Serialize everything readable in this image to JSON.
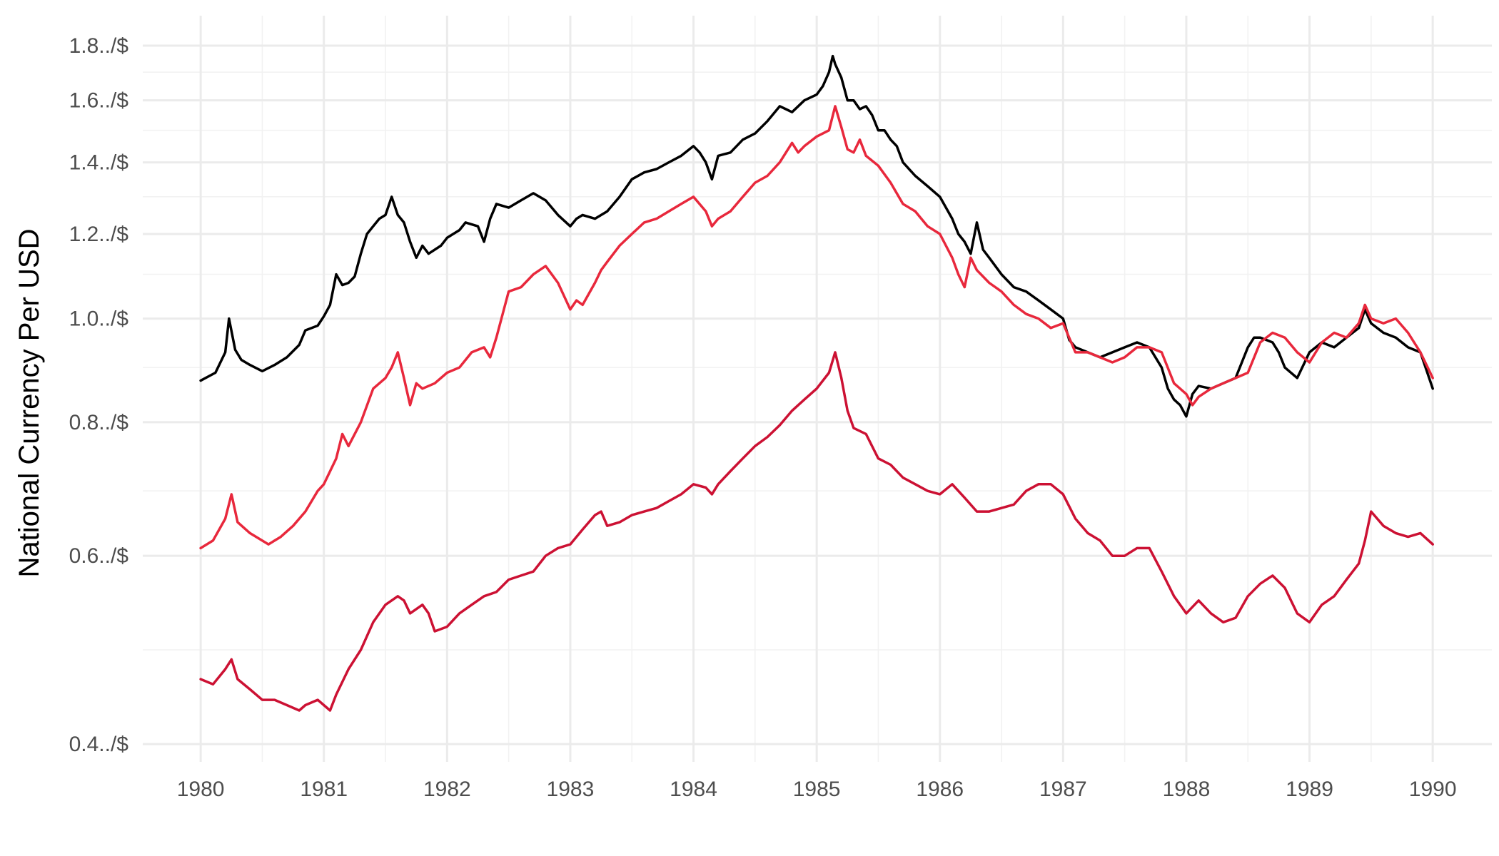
{
  "chart_data": {
    "type": "line",
    "title": "",
    "xlabel": "",
    "ylabel": "National Currency Per USD",
    "y_scale": "log",
    "xlim": [
      1979.53,
      1990.48
    ],
    "ylim": [
      0.385,
      1.92
    ],
    "grid": true,
    "legend": "none",
    "x_ticks": [
      1980,
      1981,
      1982,
      1983,
      1984,
      1985,
      1986,
      1987,
      1988,
      1989,
      1990
    ],
    "x_tick_labels": [
      "1980",
      "1981",
      "1982",
      "1983",
      "1984",
      "1985",
      "1986",
      "1987",
      "1988",
      "1989",
      "1990"
    ],
    "x_minor_ticks": [
      1980.5,
      1981.5,
      1982.5,
      1983.5,
      1984.5,
      1985.5,
      1986.5,
      1987.5,
      1988.5,
      1989.5
    ],
    "y_ticks": [
      0.4,
      0.6,
      0.8,
      1.0,
      1.2,
      1.4,
      1.6,
      1.8
    ],
    "y_tick_labels": [
      "0.4../$",
      "0.6../$",
      "0.8../$",
      "1.0../$",
      "1.2../$",
      "1.4../$",
      "1.6../$",
      "1.8../$"
    ],
    "y_minor_ticks": [
      0.49,
      0.69,
      0.9,
      1.1,
      1.3,
      1.5,
      1.7
    ],
    "series": [
      {
        "color": "#000000",
        "x": [
          1980.0,
          1980.12,
          1980.2,
          1980.23,
          1980.28,
          1980.33,
          1980.4,
          1980.5,
          1980.6,
          1980.7,
          1980.8,
          1980.85,
          1980.95,
          1981.0,
          1981.05,
          1981.1,
          1981.15,
          1981.2,
          1981.25,
          1981.3,
          1981.35,
          1981.4,
          1981.45,
          1981.5,
          1981.55,
          1981.6,
          1981.65,
          1981.7,
          1981.75,
          1981.8,
          1981.85,
          1981.95,
          1982.0,
          1982.1,
          1982.15,
          1982.25,
          1982.3,
          1982.35,
          1982.4,
          1982.5,
          1982.6,
          1982.7,
          1982.8,
          1982.9,
          1983.0,
          1983.05,
          1983.1,
          1983.2,
          1983.3,
          1983.4,
          1983.5,
          1983.6,
          1983.7,
          1983.8,
          1983.9,
          1984.0,
          1984.05,
          1984.1,
          1984.15,
          1984.2,
          1984.3,
          1984.4,
          1984.5,
          1984.6,
          1984.7,
          1984.75,
          1984.8,
          1984.9,
          1985.0,
          1985.05,
          1985.1,
          1985.13,
          1985.15,
          1985.2,
          1985.25,
          1985.3,
          1985.35,
          1985.4,
          1985.45,
          1985.5,
          1985.55,
          1985.6,
          1985.65,
          1985.7,
          1985.8,
          1985.9,
          1986.0,
          1986.1,
          1986.15,
          1986.2,
          1986.25,
          1986.3,
          1986.35,
          1986.4,
          1986.5,
          1986.6,
          1986.7,
          1986.8,
          1986.9,
          1987.0,
          1987.05,
          1987.1,
          1987.2,
          1987.3,
          1987.4,
          1987.5,
          1987.6,
          1987.7,
          1987.8,
          1987.85,
          1987.9,
          1987.95,
          1988.0,
          1988.05,
          1988.1,
          1988.2,
          1988.3,
          1988.4,
          1988.5,
          1988.55,
          1988.6,
          1988.7,
          1988.75,
          1988.8,
          1988.9,
          1989.0,
          1989.1,
          1989.2,
          1989.3,
          1989.4,
          1989.45,
          1989.5,
          1989.6,
          1989.7,
          1989.8,
          1989.9,
          1990.0
        ],
        "y": [
          0.875,
          0.89,
          0.93,
          1.0,
          0.935,
          0.915,
          0.905,
          0.893,
          0.905,
          0.92,
          0.945,
          0.975,
          0.985,
          1.005,
          1.03,
          1.1,
          1.075,
          1.08,
          1.095,
          1.15,
          1.2,
          1.22,
          1.24,
          1.25,
          1.3,
          1.25,
          1.23,
          1.18,
          1.14,
          1.17,
          1.15,
          1.17,
          1.19,
          1.21,
          1.23,
          1.22,
          1.18,
          1.24,
          1.28,
          1.27,
          1.29,
          1.31,
          1.29,
          1.25,
          1.22,
          1.24,
          1.25,
          1.24,
          1.26,
          1.3,
          1.35,
          1.37,
          1.38,
          1.4,
          1.42,
          1.45,
          1.43,
          1.4,
          1.35,
          1.42,
          1.43,
          1.47,
          1.49,
          1.53,
          1.58,
          1.57,
          1.56,
          1.6,
          1.62,
          1.65,
          1.7,
          1.76,
          1.73,
          1.68,
          1.6,
          1.6,
          1.57,
          1.58,
          1.55,
          1.5,
          1.5,
          1.47,
          1.45,
          1.4,
          1.36,
          1.33,
          1.3,
          1.24,
          1.2,
          1.18,
          1.15,
          1.23,
          1.16,
          1.14,
          1.1,
          1.07,
          1.06,
          1.04,
          1.02,
          1.0,
          0.955,
          0.94,
          0.93,
          0.92,
          0.93,
          0.94,
          0.95,
          0.94,
          0.9,
          0.86,
          0.84,
          0.83,
          0.81,
          0.85,
          0.865,
          0.86,
          0.87,
          0.88,
          0.94,
          0.96,
          0.96,
          0.95,
          0.93,
          0.9,
          0.88,
          0.93,
          0.95,
          0.94,
          0.96,
          0.98,
          1.02,
          0.99,
          0.97,
          0.96,
          0.94,
          0.93,
          0.86
        ]
      },
      {
        "color": "#e8283c",
        "x": [
          1980.0,
          1980.1,
          1980.2,
          1980.25,
          1980.3,
          1980.4,
          1980.55,
          1980.65,
          1980.75,
          1980.85,
          1980.95,
          1981.0,
          1981.1,
          1981.15,
          1981.2,
          1981.3,
          1981.4,
          1981.5,
          1981.55,
          1981.6,
          1981.65,
          1981.7,
          1981.75,
          1981.8,
          1981.9,
          1982.0,
          1982.1,
          1982.2,
          1982.3,
          1982.35,
          1982.4,
          1982.5,
          1982.6,
          1982.7,
          1982.8,
          1982.9,
          1983.0,
          1983.05,
          1983.1,
          1983.2,
          1983.25,
          1983.3,
          1983.4,
          1983.5,
          1983.6,
          1983.7,
          1983.8,
          1983.9,
          1984.0,
          1984.1,
          1984.15,
          1984.2,
          1984.3,
          1984.4,
          1984.5,
          1984.6,
          1984.7,
          1984.8,
          1984.85,
          1984.9,
          1985.0,
          1985.1,
          1985.15,
          1985.2,
          1985.25,
          1985.3,
          1985.35,
          1985.4,
          1985.5,
          1985.6,
          1985.7,
          1985.8,
          1985.9,
          1986.0,
          1986.1,
          1986.15,
          1986.2,
          1986.25,
          1986.3,
          1986.4,
          1986.5,
          1986.6,
          1986.7,
          1986.8,
          1986.9,
          1987.0,
          1987.1,
          1987.2,
          1987.3,
          1987.4,
          1987.5,
          1987.6,
          1987.7,
          1987.8,
          1987.9,
          1988.0,
          1988.05,
          1988.1,
          1988.2,
          1988.3,
          1988.4,
          1988.5,
          1988.6,
          1988.7,
          1988.8,
          1988.9,
          1989.0,
          1989.1,
          1989.2,
          1989.3,
          1989.4,
          1989.45,
          1989.5,
          1989.6,
          1989.7,
          1989.8,
          1989.9,
          1990.0
        ],
        "y": [
          0.61,
          0.62,
          0.65,
          0.685,
          0.645,
          0.63,
          0.615,
          0.625,
          0.64,
          0.66,
          0.69,
          0.7,
          0.74,
          0.78,
          0.76,
          0.8,
          0.86,
          0.88,
          0.9,
          0.93,
          0.88,
          0.83,
          0.87,
          0.86,
          0.87,
          0.89,
          0.9,
          0.93,
          0.94,
          0.92,
          0.96,
          1.06,
          1.07,
          1.1,
          1.12,
          1.08,
          1.02,
          1.04,
          1.03,
          1.08,
          1.11,
          1.13,
          1.17,
          1.2,
          1.23,
          1.24,
          1.26,
          1.28,
          1.3,
          1.26,
          1.22,
          1.24,
          1.26,
          1.3,
          1.34,
          1.36,
          1.4,
          1.46,
          1.43,
          1.45,
          1.48,
          1.5,
          1.58,
          1.51,
          1.44,
          1.43,
          1.47,
          1.42,
          1.39,
          1.34,
          1.28,
          1.26,
          1.22,
          1.2,
          1.14,
          1.1,
          1.07,
          1.14,
          1.11,
          1.08,
          1.06,
          1.03,
          1.01,
          1.0,
          0.98,
          0.99,
          0.93,
          0.93,
          0.92,
          0.91,
          0.92,
          0.94,
          0.94,
          0.93,
          0.87,
          0.85,
          0.83,
          0.845,
          0.86,
          0.87,
          0.88,
          0.89,
          0.95,
          0.97,
          0.96,
          0.93,
          0.91,
          0.95,
          0.97,
          0.96,
          0.99,
          1.03,
          1.0,
          0.99,
          1.0,
          0.97,
          0.93,
          0.88
        ]
      },
      {
        "color": "#cc1133",
        "x": [
          1980.0,
          1980.1,
          1980.2,
          1980.25,
          1980.3,
          1980.4,
          1980.5,
          1980.6,
          1980.7,
          1980.8,
          1980.85,
          1980.95,
          1981.0,
          1981.05,
          1981.1,
          1981.2,
          1981.3,
          1981.4,
          1981.5,
          1981.6,
          1981.65,
          1981.7,
          1981.8,
          1981.85,
          1981.9,
          1982.0,
          1982.1,
          1982.2,
          1982.3,
          1982.4,
          1982.5,
          1982.6,
          1982.7,
          1982.8,
          1982.9,
          1983.0,
          1983.1,
          1983.2,
          1983.25,
          1983.3,
          1983.4,
          1983.5,
          1983.6,
          1983.7,
          1983.8,
          1983.9,
          1984.0,
          1984.1,
          1984.15,
          1984.2,
          1984.3,
          1984.4,
          1984.5,
          1984.6,
          1984.7,
          1984.8,
          1984.9,
          1985.0,
          1985.1,
          1985.15,
          1985.2,
          1985.25,
          1985.3,
          1985.4,
          1985.5,
          1985.6,
          1985.7,
          1985.8,
          1985.9,
          1986.0,
          1986.1,
          1986.2,
          1986.3,
          1986.4,
          1986.5,
          1986.6,
          1986.7,
          1986.8,
          1986.9,
          1987.0,
          1987.1,
          1987.2,
          1987.3,
          1987.4,
          1987.5,
          1987.6,
          1987.7,
          1987.8,
          1987.9,
          1988.0,
          1988.1,
          1988.2,
          1988.3,
          1988.4,
          1988.5,
          1988.6,
          1988.7,
          1988.8,
          1988.9,
          1989.0,
          1989.1,
          1989.2,
          1989.3,
          1989.4,
          1989.45,
          1989.5,
          1989.6,
          1989.7,
          1989.8,
          1989.9,
          1990.0
        ],
        "y": [
          0.46,
          0.455,
          0.47,
          0.48,
          0.46,
          0.45,
          0.44,
          0.44,
          0.435,
          0.43,
          0.435,
          0.44,
          0.435,
          0.43,
          0.445,
          0.47,
          0.49,
          0.52,
          0.54,
          0.55,
          0.545,
          0.53,
          0.54,
          0.53,
          0.51,
          0.515,
          0.53,
          0.54,
          0.55,
          0.555,
          0.57,
          0.575,
          0.58,
          0.6,
          0.61,
          0.615,
          0.635,
          0.655,
          0.66,
          0.64,
          0.645,
          0.655,
          0.66,
          0.665,
          0.675,
          0.685,
          0.7,
          0.695,
          0.685,
          0.7,
          0.72,
          0.74,
          0.76,
          0.775,
          0.795,
          0.82,
          0.84,
          0.86,
          0.89,
          0.93,
          0.88,
          0.82,
          0.79,
          0.78,
          0.74,
          0.73,
          0.71,
          0.7,
          0.69,
          0.685,
          0.7,
          0.68,
          0.66,
          0.66,
          0.665,
          0.67,
          0.69,
          0.7,
          0.7,
          0.685,
          0.65,
          0.63,
          0.62,
          0.6,
          0.6,
          0.61,
          0.61,
          0.58,
          0.55,
          0.53,
          0.545,
          0.53,
          0.52,
          0.525,
          0.55,
          0.565,
          0.575,
          0.56,
          0.53,
          0.52,
          0.54,
          0.55,
          0.57,
          0.59,
          0.62,
          0.66,
          0.64,
          0.63,
          0.625,
          0.63,
          0.615
        ]
      }
    ]
  }
}
